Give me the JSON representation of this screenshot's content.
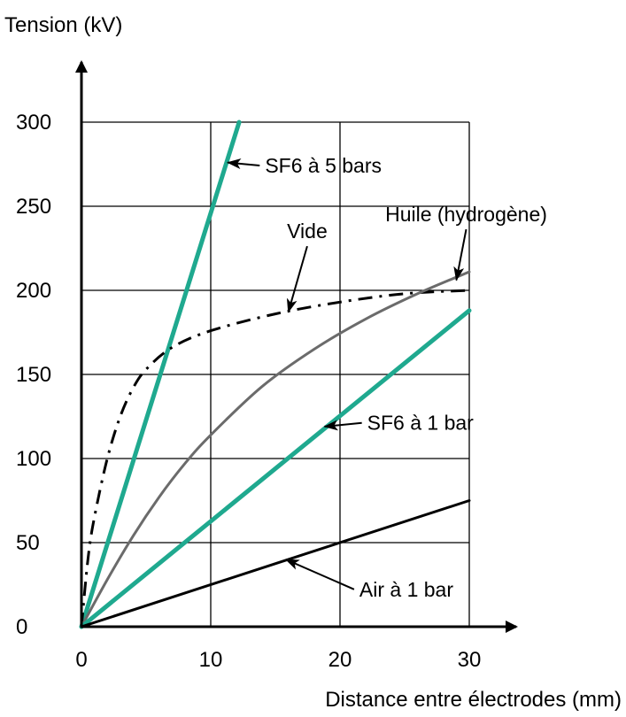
{
  "chart_data": {
    "type": "line",
    "title": "",
    "ylabel": "Tension (kV)",
    "xlabel": "Distance entre électrodes (mm)",
    "xlim": [
      0,
      30
    ],
    "ylim": [
      0,
      300
    ],
    "x_ticks": [
      "0",
      "10",
      "20",
      "30"
    ],
    "y_ticks": [
      "0",
      "50",
      "100",
      "150",
      "200",
      "250",
      "300"
    ],
    "grid": true,
    "legend": "none (series named by annotation arrows)",
    "series": [
      {
        "name": "SF6 à 5 bars",
        "color": "#1fa98f",
        "style": "solid-thick",
        "points": [
          [
            0,
            0
          ],
          [
            12.2,
            300
          ]
        ]
      },
      {
        "name": "Vide",
        "color": "#000000",
        "style": "dash-dot",
        "points": [
          [
            0,
            0
          ],
          [
            0.5,
            40
          ],
          [
            1,
            65
          ],
          [
            2,
            100
          ],
          [
            3,
            125
          ],
          [
            4,
            142
          ],
          [
            5,
            153
          ],
          [
            7,
            166
          ],
          [
            10,
            176
          ],
          [
            15,
            186
          ],
          [
            20,
            193
          ],
          [
            25,
            198
          ],
          [
            30,
            200
          ]
        ]
      },
      {
        "name": "Huile (hydrogène)",
        "color": "#6b6b6b",
        "style": "solid",
        "points": [
          [
            0,
            0
          ],
          [
            2,
            28
          ],
          [
            4,
            54
          ],
          [
            6,
            77
          ],
          [
            8,
            97
          ],
          [
            10,
            114
          ],
          [
            14,
            143
          ],
          [
            18,
            165
          ],
          [
            22,
            183
          ],
          [
            26,
            198
          ],
          [
            30,
            211
          ]
        ]
      },
      {
        "name": "SF6 à 1 bar",
        "color": "#1fa98f",
        "style": "solid-thick",
        "points": [
          [
            0,
            0
          ],
          [
            30,
            188
          ]
        ]
      },
      {
        "name": "Air à 1 bar",
        "color": "#000000",
        "style": "solid",
        "points": [
          [
            0,
            0
          ],
          [
            30,
            75
          ]
        ]
      }
    ],
    "annotations": [
      {
        "series": 0,
        "text": "SF6 à 5 bars",
        "target": [
          11.3,
          276
        ],
        "text_at": [
          14.2,
          270
        ]
      },
      {
        "series": 1,
        "text": "Vide",
        "target": [
          16,
          187
        ],
        "text_at": [
          15.9,
          231
        ]
      },
      {
        "series": 2,
        "text": "Huile (hydrogène)",
        "target": [
          29,
          206
        ],
        "text_at": [
          23.5,
          241
        ]
      },
      {
        "series": 3,
        "text": "SF6 à 1 bar",
        "target": [
          18.8,
          119
        ],
        "text_at": [
          22.1,
          117
        ]
      },
      {
        "series": 4,
        "text": "Air à 1 bar",
        "target": [
          15.8,
          40
        ],
        "text_at": [
          21.5,
          18
        ]
      }
    ]
  }
}
